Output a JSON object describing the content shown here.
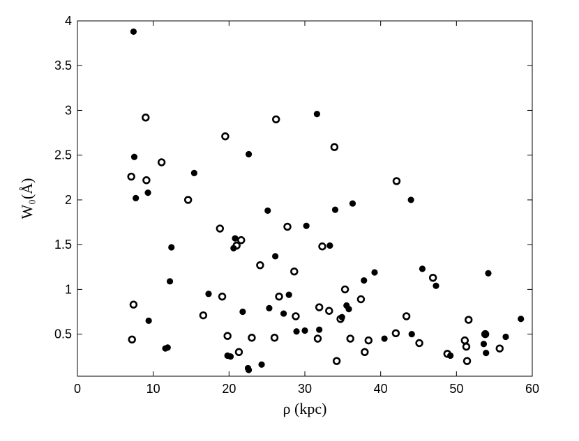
{
  "chart_data": {
    "type": "scatter",
    "xlabel": "ρ (kpc)",
    "ylabel": "W₀(Å)",
    "xlim": [
      0,
      60
    ],
    "ylim": [
      0.03,
      4
    ],
    "xticks": [
      "0",
      "10",
      "20",
      "30",
      "40",
      "50",
      "60"
    ],
    "yticks": [
      "0.5",
      "1",
      "1.5",
      "2",
      "2.5",
      "3",
      "3.5",
      "4"
    ],
    "grid": false,
    "legend": "none",
    "series": [
      {
        "marker": "filled-circle",
        "color": "#000000",
        "points": [
          [
            7.4,
            3.88
          ],
          [
            7.5,
            2.48
          ],
          [
            7.7,
            2.02
          ],
          [
            9.3,
            2.08
          ],
          [
            9.4,
            0.65
          ],
          [
            11.6,
            0.34
          ],
          [
            11.9,
            0.35
          ],
          [
            12.2,
            1.09
          ],
          [
            12.4,
            1.47
          ],
          [
            15.4,
            2.3
          ],
          [
            17.3,
            0.95
          ],
          [
            19.8,
            0.26
          ],
          [
            20.2,
            0.25
          ],
          [
            20.6,
            1.46
          ],
          [
            20.8,
            1.57
          ],
          [
            21.8,
            0.75
          ],
          [
            22.5,
            0.12
          ],
          [
            22.6,
            0.1
          ],
          [
            22.6,
            2.51
          ],
          [
            24.3,
            0.16
          ],
          [
            25.1,
            1.88
          ],
          [
            25.3,
            0.79
          ],
          [
            26.1,
            1.37
          ],
          [
            27.2,
            0.73
          ],
          [
            27.9,
            0.94
          ],
          [
            28.9,
            0.53
          ],
          [
            30.0,
            0.54
          ],
          [
            30.2,
            1.71
          ],
          [
            31.6,
            2.96
          ],
          [
            31.9,
            0.55
          ],
          [
            33.3,
            1.49
          ],
          [
            34.0,
            1.89
          ],
          [
            34.9,
            0.69
          ],
          [
            35.5,
            0.82
          ],
          [
            35.8,
            0.78
          ],
          [
            36.3,
            1.96
          ],
          [
            37.8,
            1.1
          ],
          [
            39.2,
            1.19
          ],
          [
            40.5,
            0.45
          ],
          [
            44.0,
            2.0
          ],
          [
            44.1,
            0.5
          ],
          [
            45.5,
            1.23
          ],
          [
            47.3,
            1.04
          ],
          [
            49.2,
            0.26
          ],
          [
            53.6,
            0.39
          ],
          [
            53.8,
            0.5
          ],
          [
            53.9,
            0.29
          ],
          [
            54.2,
            1.18
          ],
          [
            56.5,
            0.47
          ],
          [
            58.5,
            0.67
          ]
        ]
      },
      {
        "marker": "open-circle",
        "color": "#000000",
        "points": [
          [
            7.1,
            2.26
          ],
          [
            7.2,
            0.44
          ],
          [
            7.4,
            0.83
          ],
          [
            9.0,
            2.92
          ],
          [
            9.1,
            2.22
          ],
          [
            11.1,
            2.42
          ],
          [
            14.6,
            2.0
          ],
          [
            16.6,
            0.71
          ],
          [
            18.8,
            1.68
          ],
          [
            19.1,
            0.92
          ],
          [
            19.5,
            2.71
          ],
          [
            19.8,
            0.48
          ],
          [
            21.0,
            1.49
          ],
          [
            21.3,
            0.3
          ],
          [
            21.6,
            1.55
          ],
          [
            23.0,
            0.46
          ],
          [
            24.1,
            1.27
          ],
          [
            26.0,
            0.46
          ],
          [
            26.2,
            2.9
          ],
          [
            26.6,
            0.92
          ],
          [
            27.7,
            1.7
          ],
          [
            28.6,
            1.2
          ],
          [
            28.8,
            0.7
          ],
          [
            31.7,
            0.45
          ],
          [
            31.9,
            0.8
          ],
          [
            32.3,
            1.48
          ],
          [
            33.2,
            0.76
          ],
          [
            33.9,
            2.59
          ],
          [
            34.2,
            0.2
          ],
          [
            34.7,
            0.67
          ],
          [
            35.3,
            1.0
          ],
          [
            36.0,
            0.45
          ],
          [
            37.4,
            0.89
          ],
          [
            37.9,
            0.3
          ],
          [
            38.4,
            0.43
          ],
          [
            42.0,
            0.51
          ],
          [
            42.1,
            2.21
          ],
          [
            43.4,
            0.7
          ],
          [
            45.1,
            0.4
          ],
          [
            46.9,
            1.13
          ],
          [
            48.8,
            0.28
          ],
          [
            51.1,
            0.43
          ],
          [
            51.3,
            0.36
          ],
          [
            51.4,
            0.2
          ],
          [
            51.6,
            0.66
          ],
          [
            53.8,
            0.5
          ],
          [
            55.7,
            0.34
          ]
        ]
      }
    ]
  }
}
